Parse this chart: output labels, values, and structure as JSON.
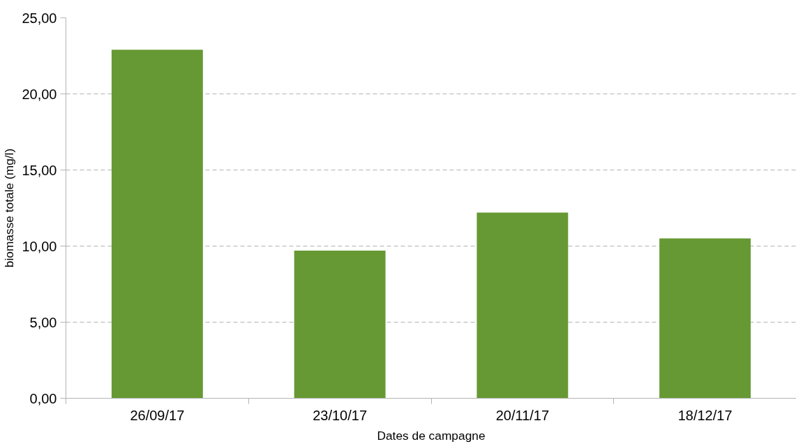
{
  "chart_data": {
    "type": "bar",
    "xlabel": "Dates de campagne",
    "ylabel": "biomasse totale (mg/l)",
    "categories": [
      "26/09/17",
      "23/10/17",
      "20/11/17",
      "18/12/17"
    ],
    "values": [
      22.9,
      9.7,
      12.2,
      10.5
    ],
    "color": "#669933",
    "ylim": [
      0,
      25
    ],
    "yticks": [
      {
        "value": 0,
        "label": "0,00"
      },
      {
        "value": 5,
        "label": "5,00"
      },
      {
        "value": 10,
        "label": "10,00"
      },
      {
        "value": 15,
        "label": "15,00"
      },
      {
        "value": 20,
        "label": "20,00"
      },
      {
        "value": 25,
        "label": "25,00"
      }
    ],
    "grid": "y"
  }
}
